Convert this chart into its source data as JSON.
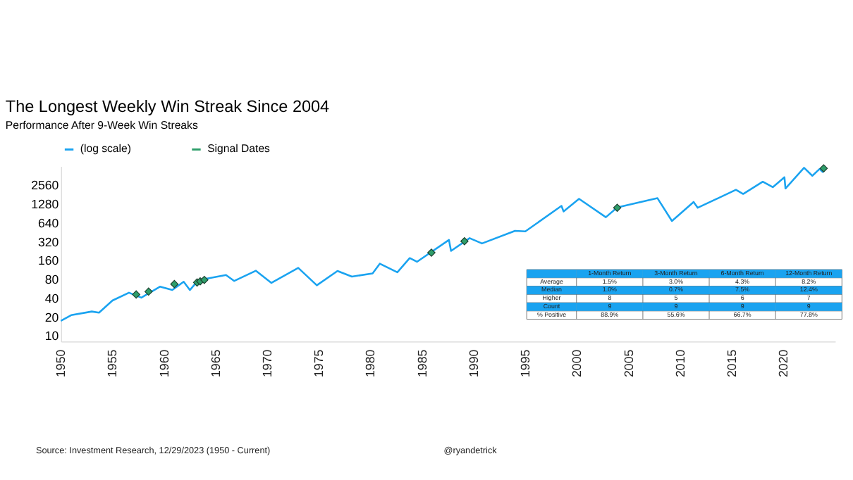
{
  "chart_data": {
    "type": "line",
    "title": "The Longest Weekly Win Streak Since 2004",
    "subtitle": "Performance After 9-Week Win Streaks",
    "xlim": [
      1950,
      2025
    ],
    "xticks": [
      1950,
      1955,
      1960,
      1965,
      1970,
      1975,
      1980,
      1985,
      1990,
      1995,
      2000,
      2005,
      2010,
      2015,
      2020
    ],
    "ylim": [
      8,
      5120
    ],
    "yticks": [
      10,
      20,
      40,
      80,
      160,
      320,
      640,
      1280,
      2560
    ],
    "log": true,
    "grid": false,
    "legend": "top",
    "series": [
      {
        "name": "(log scale)",
        "color": "#1aa3f0",
        "x": [
          1950,
          1951,
          1953,
          1953.7,
          1955,
          1956.6,
          1957.8,
          1959.6,
          1960.8,
          1961.9,
          1962.5,
          1963,
          1964,
          1966,
          1966.8,
          1968.9,
          1970.4,
          1973,
          1974.8,
          1976.8,
          1978.2,
          1980.2,
          1980.9,
          1982.6,
          1983.8,
          1984.5,
          1987.6,
          1987.8,
          1989.6,
          1990.8,
          1994,
          1995,
          1998.5,
          1998.7,
          2000.2,
          2002.8,
          2003.9,
          2007.8,
          2009.2,
          2011.3,
          2011.7,
          2015.4,
          2016.1,
          2018,
          2018.97,
          2020.1,
          2020.2,
          2022,
          2022.8,
          2023.5,
          2023.8,
          2023.99
        ],
        "values": [
          17,
          21,
          24,
          23,
          36,
          48,
          40,
          60,
          53,
          72,
          53,
          66,
          80,
          92,
          74,
          108,
          69,
          120,
          63,
          107,
          87,
          98,
          140,
          102,
          172,
          150,
          336,
          224,
          359,
          295,
          470,
          460,
          1180,
          960,
          1527,
          776,
          1111,
          1565,
          676,
          1363,
          1099,
          2130,
          1829,
          2872,
          2351,
          3386,
          2237,
          4796,
          3577,
          4588,
          4117,
          4770
        ]
      },
      {
        "name": "Signal Dates",
        "type": "scatter",
        "marker": "diamond",
        "color": "#2e9e6a",
        "x": [
          1957.3,
          1958.5,
          1961,
          1963.2,
          1963.5,
          1963.9,
          1985.9,
          1989.1,
          2003.9,
          2023.9
        ],
        "values": [
          45,
          50,
          66,
          70,
          73,
          77,
          210,
          320,
          1100,
          4700
        ]
      }
    ],
    "annotations": [
      "Source: Investment Research, 12/29/2023 (1950 - Current)",
      "@ryandetrick",
      "1-Month Return",
      "3-Month Return",
      "6-Month Return",
      "12-Month Return",
      "Average",
      "1.5%",
      "3.0%",
      "4.3%",
      "8.2%",
      "Median",
      "1.0%",
      "0.7%",
      "7.5%",
      "12.4%",
      "Higher",
      "8",
      "5",
      "6",
      "7",
      "Count",
      "9",
      "9",
      "9",
      "9",
      "% Positive",
      "88.9%",
      "55.6%",
      "66.7%",
      "77.8%"
    ]
  }
}
